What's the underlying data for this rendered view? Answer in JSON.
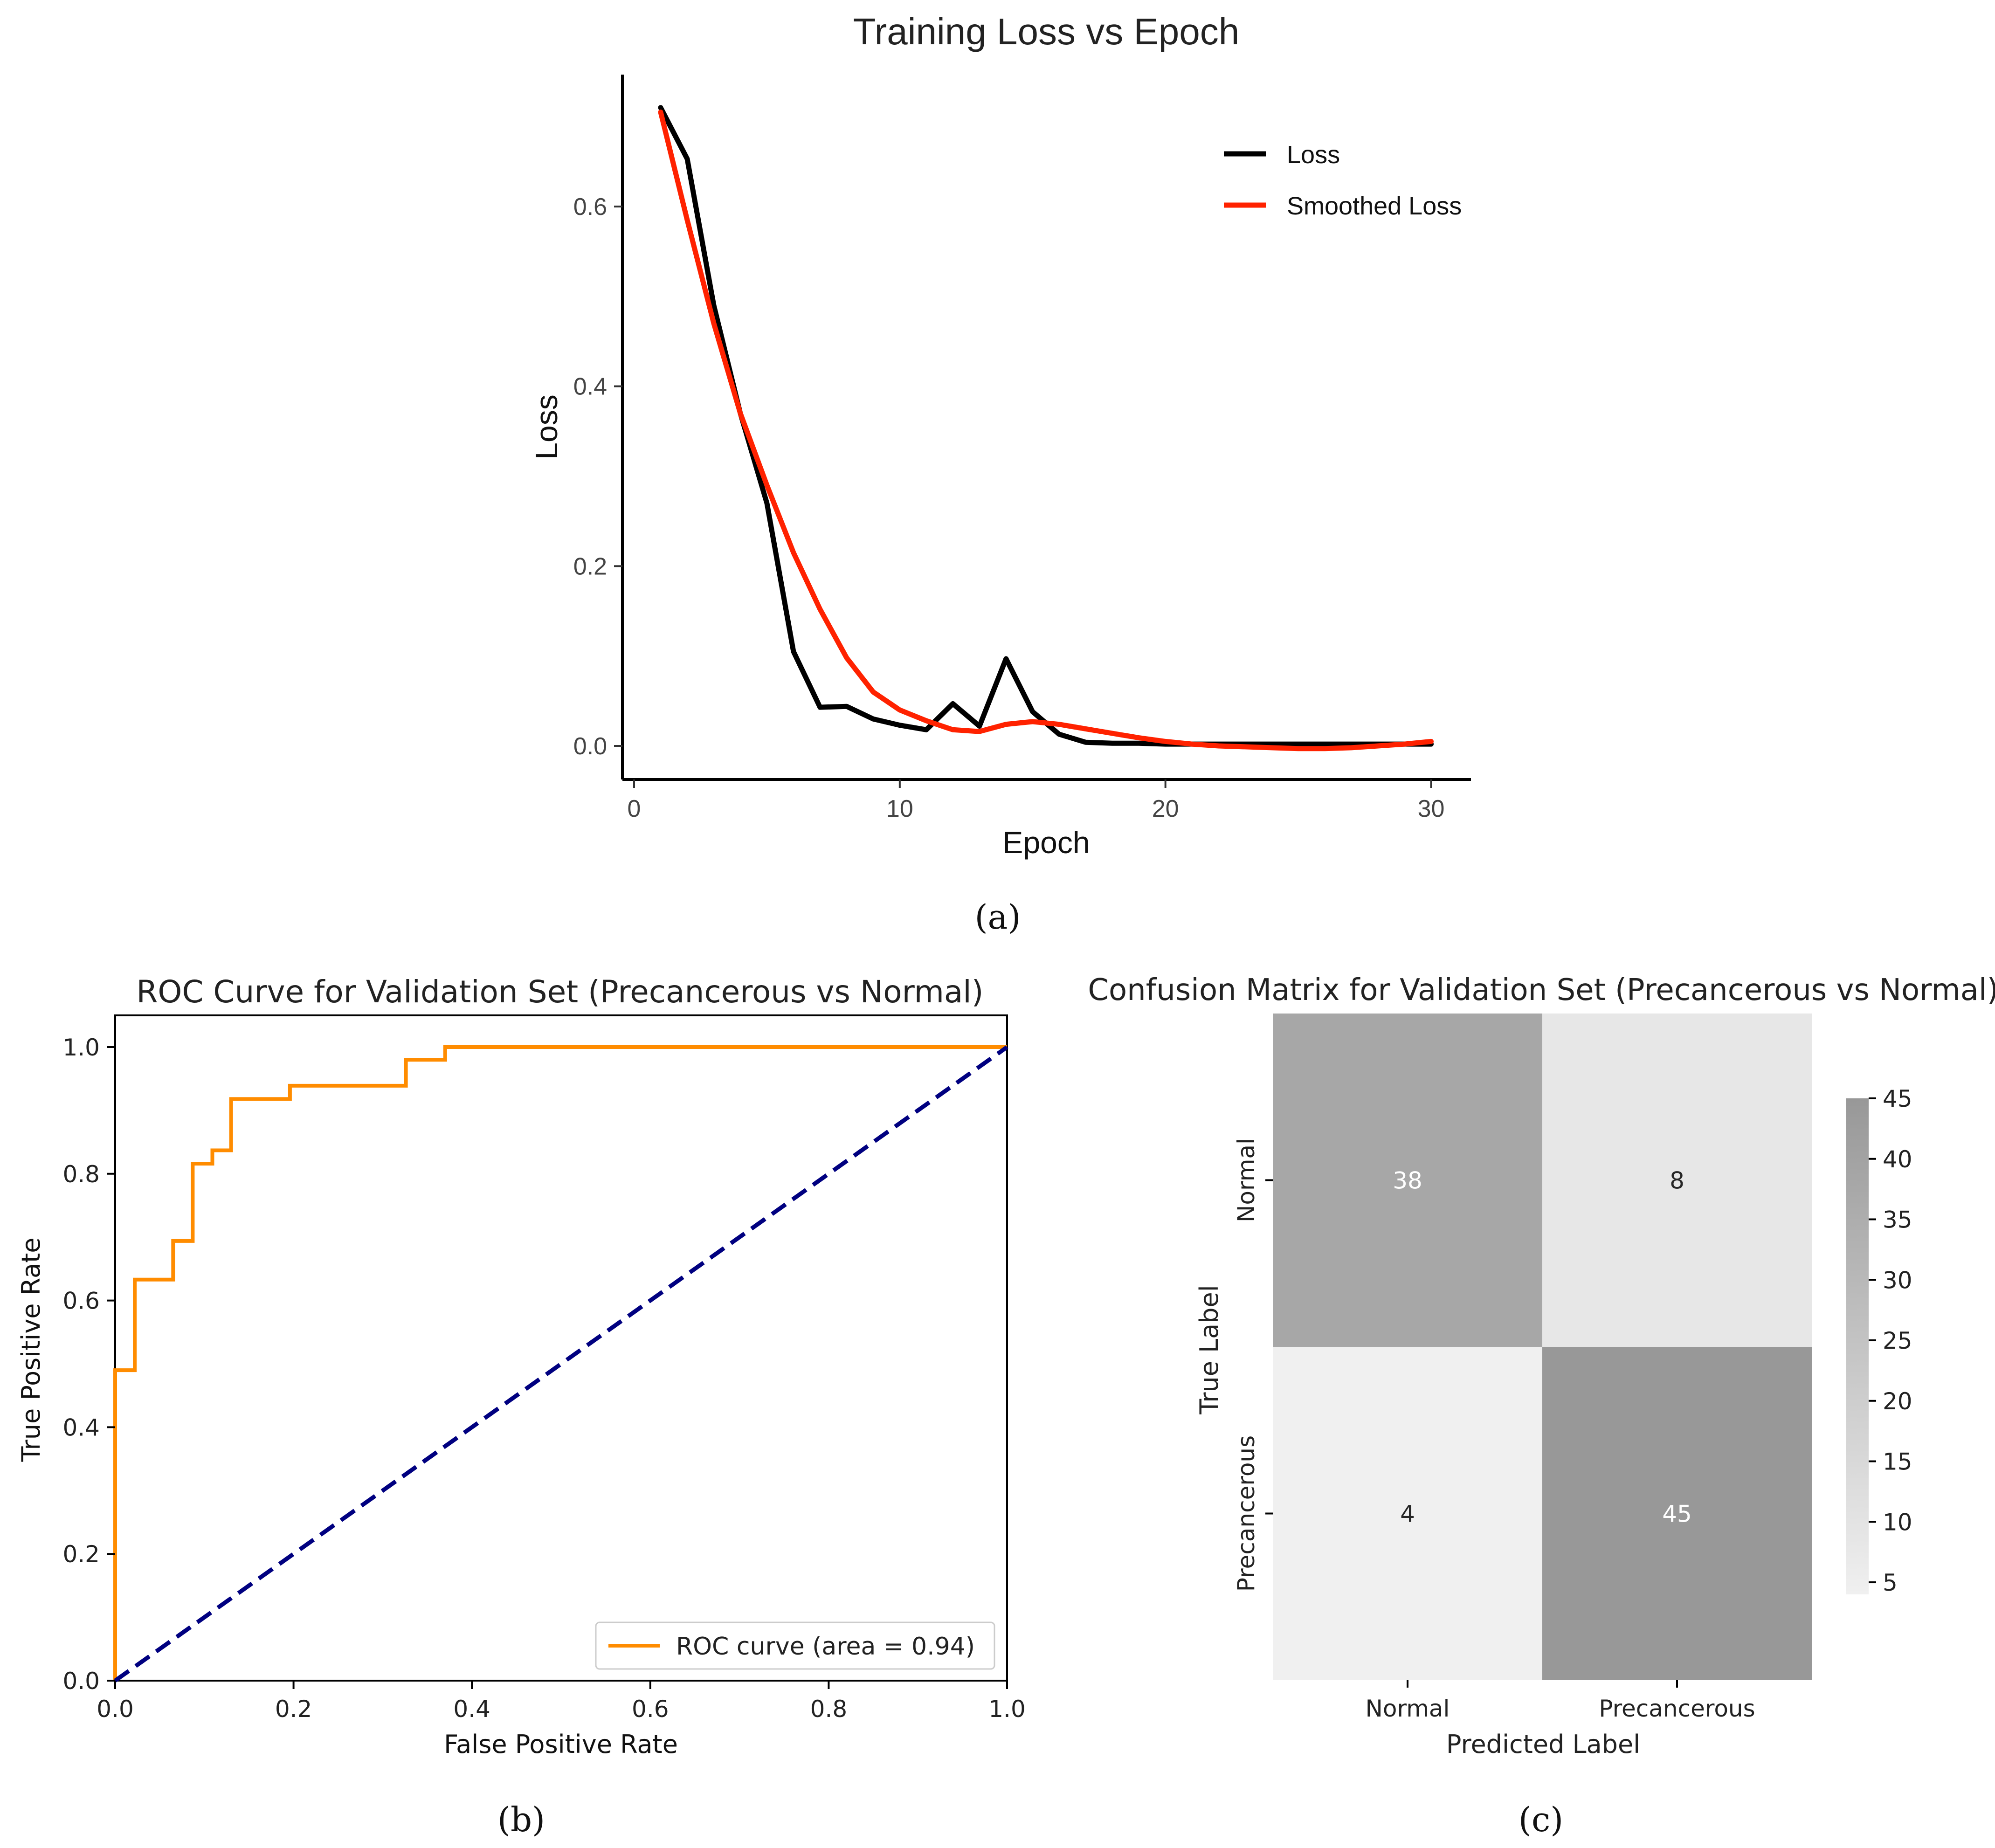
{
  "figure": {
    "panel_labels": [
      "(a)",
      "(b)",
      "(c)"
    ]
  },
  "chart_data": [
    {
      "type": "line",
      "title": "Training Loss vs Epoch",
      "xlabel": "Epoch",
      "ylabel": "Loss",
      "xlim": [
        0,
        31.5
      ],
      "ylim": [
        -0.037,
        0.75
      ],
      "xticks": [
        "0",
        "10",
        "20",
        "30"
      ],
      "xtick_values": [
        0,
        10,
        20,
        30
      ],
      "yticks": [
        "0.0",
        "0.2",
        "0.4",
        "0.6"
      ],
      "ytick_values": [
        0,
        0.2,
        0.4,
        0.6
      ],
      "legend_position": "top-right",
      "grid": false,
      "series": [
        {
          "name": "Loss",
          "color": "#000000",
          "x": [
            1,
            2,
            3,
            4,
            5,
            6,
            7,
            8,
            9,
            10,
            11,
            12,
            13,
            14,
            15,
            16,
            17,
            18,
            19,
            20,
            21,
            22,
            23,
            24,
            25,
            26,
            27,
            28,
            29,
            30
          ],
          "y": [
            0.71,
            0.653,
            0.49,
            0.37,
            0.27,
            0.105,
            0.043,
            0.044,
            0.03,
            0.023,
            0.018,
            0.047,
            0.022,
            0.097,
            0.038,
            0.013,
            0.004,
            0.003,
            0.003,
            0.002,
            0.002,
            0.002,
            0.002,
            0.002,
            0.002,
            0.002,
            0.002,
            0.002,
            0.002,
            0.002
          ]
        },
        {
          "name": "Smoothed Loss",
          "color": "#ff2200",
          "x": [
            1,
            2,
            3,
            4,
            5,
            6,
            7,
            8,
            9,
            10,
            11,
            12,
            13,
            14,
            15,
            16,
            17,
            18,
            19,
            20,
            21,
            22,
            23,
            24,
            25,
            26,
            27,
            28,
            29,
            30
          ],
          "y": [
            0.705,
            0.585,
            0.47,
            0.37,
            0.29,
            0.215,
            0.152,
            0.098,
            0.06,
            0.04,
            0.028,
            0.018,
            0.016,
            0.024,
            0.027,
            0.024,
            0.019,
            0.014,
            0.009,
            0.005,
            0.002,
            0.0,
            -0.001,
            -0.002,
            -0.003,
            -0.003,
            -0.002,
            0.0,
            0.002,
            0.005
          ]
        }
      ]
    },
    {
      "type": "line",
      "title": "ROC Curve for Validation Set (Precancerous vs Normal)",
      "xlabel": "False Positive Rate",
      "ylabel": "True Positive Rate",
      "xlim": [
        0,
        1
      ],
      "ylim": [
        0,
        1.05
      ],
      "xticks": [
        "0.0",
        "0.2",
        "0.4",
        "0.6",
        "0.8",
        "1.0"
      ],
      "xtick_values": [
        0,
        0.2,
        0.4,
        0.6,
        0.8,
        1.0
      ],
      "yticks": [
        "0.0",
        "0.2",
        "0.4",
        "0.6",
        "0.8",
        "1.0"
      ],
      "ytick_values": [
        0,
        0.2,
        0.4,
        0.6,
        0.8,
        1.0
      ],
      "legend_position": "bottom-right",
      "grid": false,
      "series": [
        {
          "name": "ROC curve (area = 0.94)",
          "color": "#ff8c00",
          "x": [
            0,
            0,
            0.022,
            0.022,
            0.065,
            0.065,
            0.087,
            0.087,
            0.109,
            0.109,
            0.13,
            0.13,
            0.196,
            0.196,
            0.326,
            0.326,
            0.37,
            0.37,
            1.0
          ],
          "y": [
            0,
            0.49,
            0.49,
            0.633,
            0.633,
            0.694,
            0.694,
            0.816,
            0.816,
            0.837,
            0.837,
            0.918,
            0.918,
            0.939,
            0.939,
            0.98,
            0.98,
            1.0,
            1.0
          ]
        },
        {
          "color": "#000080",
          "x": [
            0,
            1
          ],
          "y": [
            0,
            1
          ]
        }
      ]
    },
    {
      "type": "heatmap",
      "title": "Confusion Matrix for Validation Set (Precancerous vs Normal)",
      "xlabel": "Predicted Label",
      "ylabel": "True Label",
      "x_categories": [
        "Normal",
        "Precancerous"
      ],
      "y_categories": [
        "Normal",
        "Precancerous"
      ],
      "matrix": [
        [
          38,
          8
        ],
        [
          4,
          45
        ]
      ],
      "colorbar_range": [
        4,
        45
      ],
      "colorbar_ticks": [
        "5",
        "10",
        "15",
        "20",
        "25",
        "30",
        "35",
        "40",
        "45"
      ],
      "colorbar_tick_values": [
        5,
        10,
        15,
        20,
        25,
        30,
        35,
        40,
        45
      ],
      "colormap": [
        "#f0f0f0",
        "#989898"
      ]
    }
  ]
}
